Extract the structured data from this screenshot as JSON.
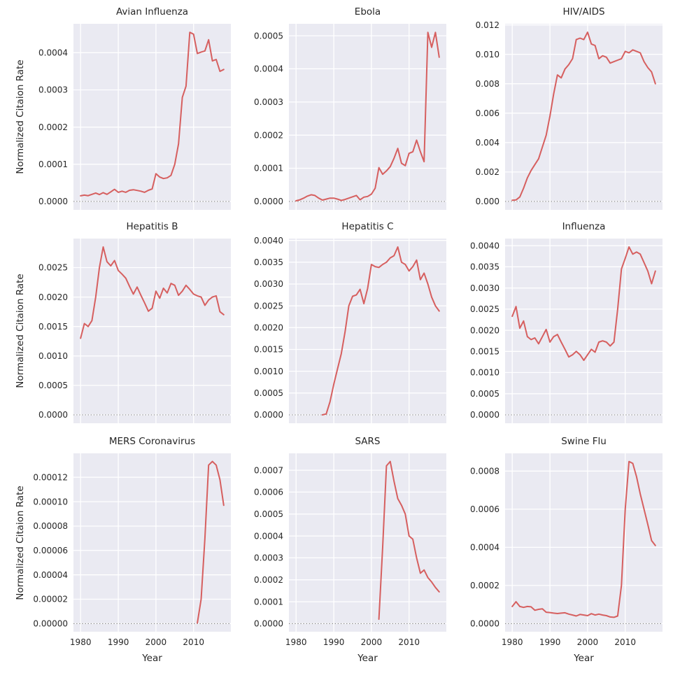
{
  "figure": {
    "ylabel": "Normalized Citaion Rate",
    "xlabel": "Year",
    "line_color": "#d65f5f",
    "axes_background": "#eaeaf2",
    "grid_color": "#ffffff",
    "zero_line_color": "#8a8a8a",
    "text_color": "#262626",
    "grid": true,
    "legend": "none",
    "x_ticks": [
      1980,
      1990,
      2000,
      2010
    ],
    "x_tick_labels": [
      "1980",
      "1990",
      "2000",
      "2010"
    ],
    "xlim": [
      1978.1,
      2019.9
    ]
  },
  "chart_data": [
    {
      "type": "line",
      "title": "Avian Influenza",
      "ylim": [
        -2.28e-05,
        0.000478
      ],
      "y_ticks": [
        0.0,
        0.0001,
        0.0002,
        0.0003,
        0.0004
      ],
      "y_tick_labels": [
        "0.0000",
        "0.0001",
        "0.0002",
        "0.0003",
        "0.0004"
      ],
      "x": [
        1980,
        1981,
        1982,
        1983,
        1984,
        1985,
        1986,
        1987,
        1988,
        1989,
        1990,
        1991,
        1992,
        1993,
        1994,
        1995,
        1996,
        1997,
        1998,
        1999,
        2000,
        2001,
        2002,
        2003,
        2004,
        2005,
        2006,
        2007,
        2008,
        2009,
        2010,
        2011,
        2012,
        2013,
        2014,
        2015,
        2016,
        2017,
        2018
      ],
      "y": [
        1.5e-05,
        1.7e-05,
        1.55e-05,
        1.9e-05,
        2.25e-05,
        1.85e-05,
        2.35e-05,
        1.9e-05,
        2.55e-05,
        3.25e-05,
        2.45e-05,
        2.75e-05,
        2.45e-05,
        3e-05,
        3.15e-05,
        2.95e-05,
        2.75e-05,
        2.45e-05,
        3e-05,
        3.35e-05,
        7.45e-05,
        6.55e-05,
        6.15e-05,
        6.35e-05,
        7e-05,
        0.0001,
        0.000155,
        0.00028,
        0.00031,
        0.000455,
        0.00045,
        0.000398,
        0.000402,
        0.000405,
        0.000435,
        0.000378,
        0.000382,
        0.00035,
        0.000355
      ]
    },
    {
      "type": "line",
      "title": "Ebola",
      "ylim": [
        -2.55e-05,
        0.000536
      ],
      "y_ticks": [
        0.0,
        0.0001,
        0.0002,
        0.0003,
        0.0004,
        0.0005
      ],
      "y_tick_labels": [
        "0.0000",
        "0.0001",
        "0.0002",
        "0.0003",
        "0.0004",
        "0.0005"
      ],
      "x": [
        1980,
        1981,
        1982,
        1983,
        1984,
        1985,
        1986,
        1987,
        1988,
        1989,
        1990,
        1991,
        1992,
        1993,
        1994,
        1995,
        1996,
        1997,
        1998,
        1999,
        2000,
        2001,
        2002,
        2003,
        2004,
        2005,
        2006,
        2007,
        2008,
        2009,
        2010,
        2011,
        2012,
        2013,
        2014,
        2015,
        2016,
        2017,
        2018
      ],
      "y": [
        2e-06,
        5e-06,
        1e-05,
        1.6e-05,
        2e-05,
        1.8e-05,
        1e-05,
        4e-06,
        7e-06,
        1e-05,
        1e-05,
        7e-06,
        3e-06,
        6e-06,
        1e-05,
        1.4e-05,
        1.8e-05,
        5e-06,
        1.3e-05,
        1.5e-05,
        2.2e-05,
        4e-05,
        0.000102,
        8.2e-05,
        9.2e-05,
        0.000105,
        0.00013,
        0.00016,
        0.000115,
        0.000108,
        0.000145,
        0.00015,
        0.000185,
        0.00015,
        0.00012,
        0.00051,
        0.000465,
        0.00051,
        0.000435
      ]
    },
    {
      "type": "line",
      "title": "HIV/AIDS",
      "ylim": [
        -0.000575,
        0.012075
      ],
      "y_ticks": [
        0.0,
        0.002,
        0.004,
        0.006,
        0.008,
        0.01,
        0.012
      ],
      "y_tick_labels": [
        "0.000",
        "0.002",
        "0.004",
        "0.006",
        "0.008",
        "0.010",
        "0.012"
      ],
      "x": [
        1980,
        1981,
        1982,
        1983,
        1984,
        1985,
        1986,
        1987,
        1988,
        1989,
        1990,
        1991,
        1992,
        1993,
        1994,
        1995,
        1996,
        1997,
        1998,
        1999,
        2000,
        2001,
        2002,
        2003,
        2004,
        2005,
        2006,
        2007,
        2008,
        2009,
        2010,
        2011,
        2012,
        2013,
        2014,
        2015,
        2016,
        2017,
        2018
      ],
      "y": [
        8e-05,
        0.0001,
        0.0003,
        0.0009,
        0.0016,
        0.0021,
        0.0025,
        0.0029,
        0.0037,
        0.0045,
        0.0058,
        0.0073,
        0.0086,
        0.0084,
        0.009,
        0.0093,
        0.0097,
        0.011,
        0.0111,
        0.011,
        0.0115,
        0.0107,
        0.0106,
        0.0097,
        0.0099,
        0.0098,
        0.0094,
        0.0095,
        0.0096,
        0.0097,
        0.0102,
        0.0101,
        0.0103,
        0.0102,
        0.0101,
        0.0095,
        0.0091,
        0.0088,
        0.008
      ]
    },
    {
      "type": "line",
      "title": "Hepatitis B",
      "ylim": [
        -0.000143,
        0.002993
      ],
      "y_ticks": [
        0.0,
        0.0005,
        0.001,
        0.0015,
        0.002,
        0.0025
      ],
      "y_tick_labels": [
        "0.0000",
        "0.0005",
        "0.0010",
        "0.0015",
        "0.0020",
        "0.0025"
      ],
      "x": [
        1980,
        1981,
        1982,
        1983,
        1984,
        1985,
        1986,
        1987,
        1988,
        1989,
        1990,
        1991,
        1992,
        1993,
        1994,
        1995,
        1996,
        1997,
        1998,
        1999,
        2000,
        2001,
        2002,
        2003,
        2004,
        2005,
        2006,
        2007,
        2008,
        2009,
        2010,
        2011,
        2012,
        2013,
        2014,
        2015,
        2016,
        2017,
        2018
      ],
      "y": [
        0.0013,
        0.00155,
        0.0015,
        0.0016,
        0.002,
        0.0025,
        0.00285,
        0.0026,
        0.00253,
        0.00262,
        0.00245,
        0.00239,
        0.00232,
        0.00218,
        0.00205,
        0.00217,
        0.00203,
        0.0019,
        0.00176,
        0.00181,
        0.0021,
        0.00198,
        0.00215,
        0.00207,
        0.00223,
        0.0022,
        0.00203,
        0.0021,
        0.0022,
        0.00213,
        0.00205,
        0.00202,
        0.002,
        0.00186,
        0.00195,
        0.002,
        0.00202,
        0.00175,
        0.0017
      ]
    },
    {
      "type": "line",
      "title": "Hepatitis C",
      "ylim": [
        -0.000193,
        0.004043
      ],
      "y_ticks": [
        0.0,
        0.0005,
        0.001,
        0.0015,
        0.002,
        0.0025,
        0.003,
        0.0035,
        0.004
      ],
      "y_tick_labels": [
        "0.0000",
        "0.0005",
        "0.0010",
        "0.0015",
        "0.0020",
        "0.0025",
        "0.0030",
        "0.0035",
        "0.0040"
      ],
      "x": [
        1987,
        1988,
        1989,
        1990,
        1991,
        1992,
        1993,
        1994,
        1995,
        1996,
        1997,
        1998,
        1999,
        2000,
        2001,
        2002,
        2003,
        2004,
        2005,
        2006,
        2007,
        2008,
        2009,
        2010,
        2011,
        2012,
        2013,
        2014,
        2015,
        2016,
        2017,
        2018
      ],
      "y": [
        0.0,
        2e-05,
        0.0003,
        0.0007,
        0.00105,
        0.0014,
        0.0019,
        0.0025,
        0.00272,
        0.00275,
        0.00288,
        0.00255,
        0.0029,
        0.00345,
        0.0034,
        0.00338,
        0.00345,
        0.0035,
        0.0036,
        0.00365,
        0.00385,
        0.0035,
        0.00345,
        0.0033,
        0.0034,
        0.00355,
        0.0031,
        0.00325,
        0.003,
        0.0027,
        0.0025,
        0.00238
      ]
    },
    {
      "type": "line",
      "title": "Influenza",
      "ylim": [
        -0.000199,
        0.004169
      ],
      "y_ticks": [
        0.0,
        0.0005,
        0.001,
        0.0015,
        0.002,
        0.0025,
        0.003,
        0.0035,
        0.004
      ],
      "y_tick_labels": [
        "0.0000",
        "0.0005",
        "0.0010",
        "0.0015",
        "0.0020",
        "0.0025",
        "0.0030",
        "0.0035",
        "0.0040"
      ],
      "x": [
        1980,
        1981,
        1982,
        1983,
        1984,
        1985,
        1986,
        1987,
        1988,
        1989,
        1990,
        1991,
        1992,
        1993,
        1994,
        1995,
        1996,
        1997,
        1998,
        1999,
        2000,
        2001,
        2002,
        2003,
        2004,
        2005,
        2006,
        2007,
        2008,
        2009,
        2010,
        2011,
        2012,
        2013,
        2014,
        2015,
        2016,
        2017,
        2018
      ],
      "y": [
        0.00233,
        0.00256,
        0.00205,
        0.00222,
        0.00185,
        0.00178,
        0.00182,
        0.00168,
        0.00185,
        0.00202,
        0.00172,
        0.00185,
        0.0019,
        0.00172,
        0.00155,
        0.00137,
        0.00142,
        0.0015,
        0.00142,
        0.00129,
        0.00142,
        0.00155,
        0.00148,
        0.00172,
        0.00175,
        0.00172,
        0.00163,
        0.00172,
        0.0025,
        0.00345,
        0.0037,
        0.00397,
        0.0038,
        0.00385,
        0.0038,
        0.0036,
        0.0034,
        0.0031,
        0.0034
      ]
    },
    {
      "type": "line",
      "title": "MERS Coronavirus",
      "ylim": [
        -6.65e-06,
        0.00013965
      ],
      "y_ticks": [
        0.0,
        2e-05,
        4e-05,
        6e-05,
        8e-05,
        0.0001,
        0.00012
      ],
      "y_tick_labels": [
        "0.00000",
        "0.00002",
        "0.00004",
        "0.00006",
        "0.00008",
        "0.00010",
        "0.00012"
      ],
      "x": [
        2011,
        2012,
        2013,
        2014,
        2015,
        2016,
        2017,
        2018
      ],
      "y": [
        5e-07,
        2e-05,
        7e-05,
        0.00013,
        0.000133,
        0.00013,
        0.000118,
        9.7e-05
      ]
    },
    {
      "type": "line",
      "title": "SARS",
      "ylim": [
        -3.7e-05,
        0.000777
      ],
      "y_ticks": [
        0.0,
        0.0001,
        0.0002,
        0.0003,
        0.0004,
        0.0005,
        0.0006,
        0.0007
      ],
      "y_tick_labels": [
        "0.0000",
        "0.0001",
        "0.0002",
        "0.0003",
        "0.0004",
        "0.0005",
        "0.0006",
        "0.0007"
      ],
      "x": [
        2002,
        2003,
        2004,
        2005,
        2006,
        2007,
        2008,
        2009,
        2010,
        2011,
        2012,
        2013,
        2014,
        2015,
        2016,
        2017,
        2018
      ],
      "y": [
        2e-05,
        0.00035,
        0.00072,
        0.00074,
        0.00065,
        0.00057,
        0.00054,
        0.0005,
        0.0004,
        0.000385,
        0.0003,
        0.00023,
        0.000245,
        0.00021,
        0.00019,
        0.000165,
        0.000145
      ]
    },
    {
      "type": "line",
      "title": "Swine Flu",
      "ylim": [
        -4.25e-05,
        0.000893
      ],
      "y_ticks": [
        0.0,
        0.0002,
        0.0004,
        0.0006,
        0.0008
      ],
      "y_tick_labels": [
        "0.0000",
        "0.0002",
        "0.0004",
        "0.0006",
        "0.0008"
      ],
      "x": [
        1980,
        1981,
        1982,
        1983,
        1984,
        1985,
        1986,
        1987,
        1988,
        1989,
        1990,
        1991,
        1992,
        1993,
        1994,
        1995,
        1996,
        1997,
        1998,
        1999,
        2000,
        2001,
        2002,
        2003,
        2004,
        2005,
        2006,
        2007,
        2008,
        2009,
        2010,
        2011,
        2012,
        2013,
        2014,
        2015,
        2016,
        2017,
        2018
      ],
      "y": [
        9e-05,
        0.000115,
        9e-05,
        8.5e-05,
        9e-05,
        8.8e-05,
        7e-05,
        7.5e-05,
        7.8e-05,
        6e-05,
        5.8e-05,
        5.5e-05,
        5.3e-05,
        5.5e-05,
        5.7e-05,
        5e-05,
        4.5e-05,
        4e-05,
        4.8e-05,
        4.5e-05,
        4.2e-05,
        5.2e-05,
        4.5e-05,
        5e-05,
        4.5e-05,
        4.2e-05,
        3.5e-05,
        3.3e-05,
        4e-05,
        0.0002,
        0.0006,
        0.00085,
        0.00084,
        0.00077,
        0.00068,
        0.0006,
        0.00052,
        0.000435,
        0.00041
      ]
    }
  ]
}
